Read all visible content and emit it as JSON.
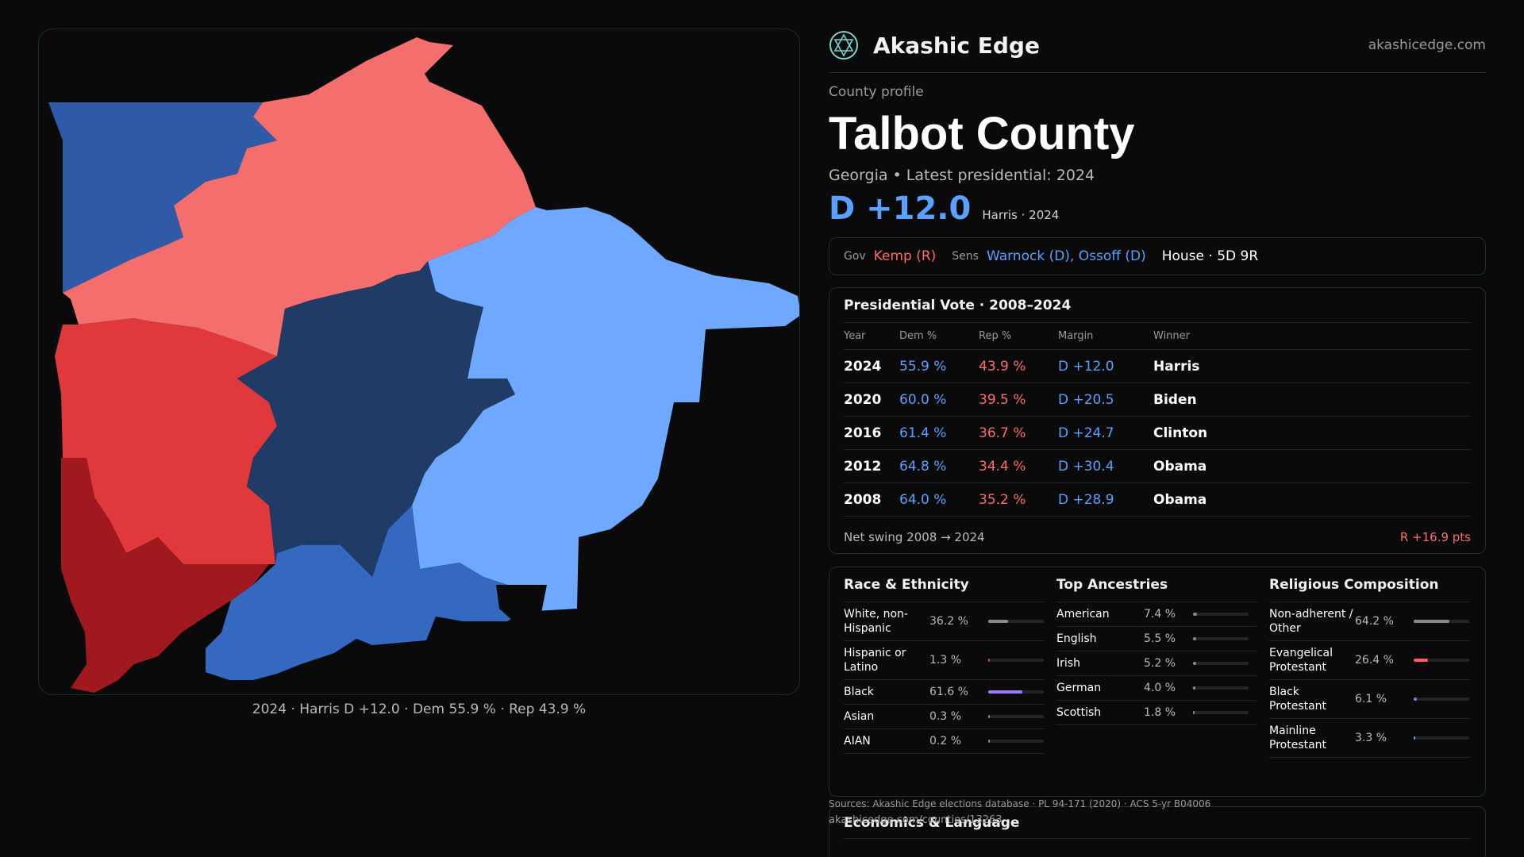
{
  "brand": {
    "name": "Akashic Edge",
    "site": "akashicedge.com",
    "logo_icon": "hexagram-globe-icon"
  },
  "profile": {
    "kicker": "County profile",
    "title": "Talbot County",
    "subtitle": "Georgia • Latest presidential: 2024",
    "margin": "D +12.0",
    "margin_sub": "Harris · 2024"
  },
  "officials": {
    "gov_label": "Gov",
    "gov": "Kemp (R)",
    "sens_label": "Sens",
    "sens": "Warnock (D), Ossoff (D)",
    "house": "House · 5D 9R"
  },
  "votes": {
    "title": "Presidential Vote · 2008–2024",
    "headers": {
      "year": "Year",
      "dem": "Dem %",
      "rep": "Rep %",
      "margin": "Margin",
      "winner": "Winner"
    },
    "rows": [
      {
        "year": "2024",
        "dem": "55.9 %",
        "rep": "43.9 %",
        "margin": "D +12.0",
        "winner": "Harris"
      },
      {
        "year": "2020",
        "dem": "60.0 %",
        "rep": "39.5 %",
        "margin": "D +20.5",
        "winner": "Biden"
      },
      {
        "year": "2016",
        "dem": "61.4 %",
        "rep": "36.7 %",
        "margin": "D +24.7",
        "winner": "Clinton"
      },
      {
        "year": "2012",
        "dem": "64.8 %",
        "rep": "34.4 %",
        "margin": "D +30.4",
        "winner": "Obama"
      },
      {
        "year": "2008",
        "dem": "64.0 %",
        "rep": "35.2 %",
        "margin": "D +28.9",
        "winner": "Obama"
      }
    ],
    "swing_label": "Net swing 2008 → 2024",
    "swing_value": "R +16.9 pts"
  },
  "race": {
    "title": "Race & Ethnicity",
    "items": [
      {
        "label": "White, non-Hispanic",
        "pct": "36.2 %",
        "value": 0.362,
        "color": "#8a8a8a"
      },
      {
        "label": "Hispanic or Latino",
        "pct": "1.3 %",
        "value": 0.013,
        "color": "#d04a3a"
      },
      {
        "label": "Black",
        "pct": "61.6 %",
        "value": 0.616,
        "color": "#9b7bff"
      },
      {
        "label": "Asian",
        "pct": "0.3 %",
        "value": 0.003,
        "color": "#8a8a8a"
      },
      {
        "label": "AIAN",
        "pct": "0.2 %",
        "value": 0.002,
        "color": "#8a8a8a"
      }
    ]
  },
  "ancestry": {
    "title": "Top Ancestries",
    "items": [
      {
        "label": "American",
        "pct": "7.4 %",
        "value": 0.074,
        "color": "#8a8a8a"
      },
      {
        "label": "English",
        "pct": "5.5 %",
        "value": 0.055,
        "color": "#8a8a8a"
      },
      {
        "label": "Irish",
        "pct": "5.2 %",
        "value": 0.052,
        "color": "#8a8a8a"
      },
      {
        "label": "German",
        "pct": "4.0 %",
        "value": 0.04,
        "color": "#8a8a8a"
      },
      {
        "label": "Scottish",
        "pct": "1.8 %",
        "value": 0.018,
        "color": "#8a8a8a"
      }
    ]
  },
  "religion": {
    "title": "Religious Composition",
    "items": [
      {
        "label": "Non-adherent / Other",
        "pct": "64.2 %",
        "value": 0.642,
        "color": "#8a8a8a"
      },
      {
        "label": "Evangelical Protestant",
        "pct": "26.4 %",
        "value": 0.264,
        "color": "#ff5a6a"
      },
      {
        "label": "Black Protestant",
        "pct": "6.1 %",
        "value": 0.061,
        "color": "#7b7bff"
      },
      {
        "label": "Mainline Protestant",
        "pct": "3.3 %",
        "value": 0.033,
        "color": "#5aa0ff"
      }
    ]
  },
  "economics": {
    "title": "Economics & Language"
  },
  "footer": {
    "sources": "Sources: Akashic Edge elections database · PL 94-171 (2020) · ACS 5-yr B04006",
    "url": "akashicedge.com/counties/13263"
  },
  "map": {
    "caption": "2024 · Harris D +12.0 · Dem 55.9 % · Rep 43.9 %",
    "colors": {
      "strong_dem": "#1f3b66",
      "dem": "#3568c0",
      "lean_dem": "#6fa8ff",
      "lean_rep": "#f46e6e",
      "rep": "#e0393c",
      "strong_rep": "#a0191e"
    }
  }
}
